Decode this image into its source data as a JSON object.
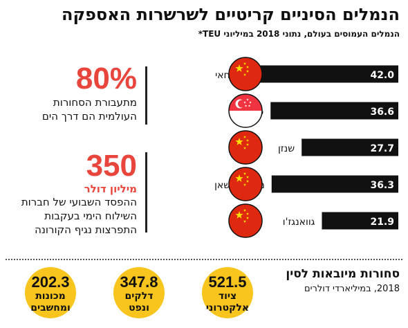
{
  "title": "הנמלים הסיניים קריטיים לשרשרות האספקה",
  "subtitle": "הנמלים העמוסים בעולם, נתוני 2018 במיליוני TEU*",
  "colors": {
    "bar": "#111111",
    "accent": "#e8453c",
    "circle": "#f7c51e",
    "flag_red": "#de2910",
    "flag_star": "#ffde00"
  },
  "chart_data": {
    "type": "bar",
    "categories": [
      "שנגחאי",
      "סינגפור",
      "שנזן",
      "נינגבו־ז'ושאן",
      "גוואנגז'ו"
    ],
    "values": [
      42.0,
      36.6,
      27.7,
      36.3,
      21.9
    ],
    "value_labels": [
      "42.0",
      "36.6",
      "27.7",
      "36.3",
      "21.9"
    ],
    "flags": [
      "china",
      "singapore",
      "china",
      "china",
      "china"
    ],
    "xlim": [
      0,
      42.0
    ],
    "orientation": "horizontal"
  },
  "stats": {
    "share": {
      "value": "80%",
      "lines": [
        "מתעבורת הסחורות",
        "העולמית הם דרך הים"
      ]
    },
    "loss": {
      "value": "350",
      "unit": "מיליון דולר",
      "lines": [
        "ההפסד השבועי של חברות",
        "השילוח הימי בעקבות",
        "התפרצות נגיף הקורונה"
      ]
    }
  },
  "imports": {
    "title": "סחורות מיובאות לסין",
    "subtitle": "2018, במיליארדי דולרים",
    "items": [
      {
        "value": "521.5",
        "lines": [
          "ציוד",
          "אלקטרוני"
        ]
      },
      {
        "value": "347.8",
        "lines": [
          "דלקים",
          "ונפט"
        ]
      },
      {
        "value": "202.3",
        "lines": [
          "מכונות",
          "ומחשבים"
        ]
      }
    ]
  }
}
